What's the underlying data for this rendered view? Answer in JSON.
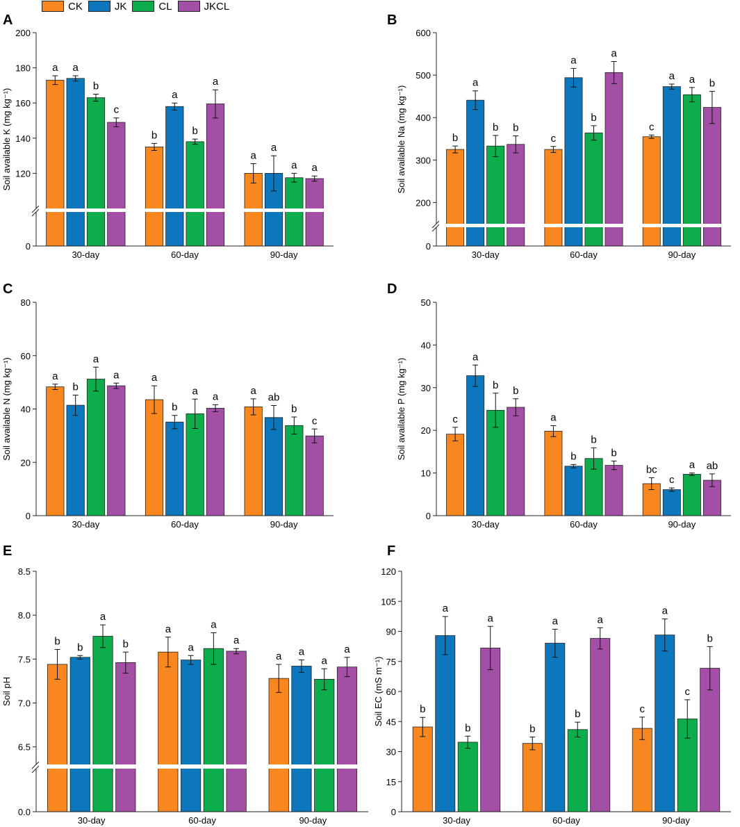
{
  "legend": [
    {
      "name": "CK",
      "color": "#F7871E"
    },
    {
      "name": "JK",
      "color": "#0C77BC"
    },
    {
      "name": "CL",
      "color": "#0DAD4B"
    },
    {
      "name": "JKCL",
      "color": "#A34FA5"
    }
  ],
  "chart_data": [
    {
      "type": "bar",
      "label": "A",
      "ylabel": "Soil available K (mg kg⁻¹)",
      "categories": [
        "30-day",
        "60-day",
        "90-day"
      ],
      "axis_break": true,
      "ylim": [
        100,
        200
      ],
      "yticks": [
        120,
        140,
        160,
        180,
        200
      ],
      "ybottom_tick": 0,
      "series": [
        {
          "name": "CK",
          "values": [
            173,
            135,
            120
          ],
          "errors": [
            2.5,
            2,
            5.5
          ],
          "letters": [
            "a",
            "b",
            "a"
          ]
        },
        {
          "name": "JK",
          "values": [
            174,
            158,
            120
          ],
          "errors": [
            1.5,
            2,
            10
          ],
          "letters": [
            "a",
            "a",
            "a"
          ]
        },
        {
          "name": "CL",
          "values": [
            163,
            138,
            117.5
          ],
          "errors": [
            2,
            1.5,
            2.5
          ],
          "letters": [
            "b",
            "b",
            "a"
          ]
        },
        {
          "name": "JKCL",
          "values": [
            149,
            159.5,
            117
          ],
          "errors": [
            2.5,
            8,
            1.5
          ],
          "letters": [
            "c",
            "a",
            "a"
          ]
        }
      ]
    },
    {
      "type": "bar",
      "label": "B",
      "ylabel": "Soil available Na (mg kg⁻¹)",
      "categories": [
        "30-day",
        "60-day",
        "90-day"
      ],
      "axis_break": true,
      "ylim": [
        150,
        600
      ],
      "yticks": [
        200,
        300,
        400,
        500,
        600
      ],
      "ybottom_tick": 0,
      "series": [
        {
          "name": "CK",
          "values": [
            325,
            325,
            355
          ],
          "errors": [
            8,
            7,
            4
          ],
          "letters": [
            "b",
            "c",
            "c"
          ]
        },
        {
          "name": "JK",
          "values": [
            441,
            494,
            473
          ],
          "errors": [
            22,
            22,
            6
          ],
          "letters": [
            "a",
            "a",
            "a"
          ]
        },
        {
          "name": "CL",
          "values": [
            333,
            364,
            454
          ],
          "errors": [
            25,
            17,
            17
          ],
          "letters": [
            "b",
            "b",
            "a"
          ]
        },
        {
          "name": "JKCL",
          "values": [
            337,
            506,
            424
          ],
          "errors": [
            20,
            26,
            38
          ],
          "letters": [
            "b",
            "a",
            "b"
          ]
        }
      ]
    },
    {
      "type": "bar",
      "label": "C",
      "ylabel": "Soil available N (mg kg⁻¹)",
      "categories": [
        "30-day",
        "60-day",
        "90-day"
      ],
      "axis_break": false,
      "ylim": [
        0,
        80
      ],
      "yticks": [
        0,
        20,
        40,
        60,
        80
      ],
      "series": [
        {
          "name": "CK",
          "values": [
            48.3,
            43.5,
            40.8
          ],
          "errors": [
            1,
            5.2,
            3
          ],
          "letters": [
            "a",
            "a",
            "a"
          ]
        },
        {
          "name": "JK",
          "values": [
            41.4,
            35.1,
            36.8
          ],
          "errors": [
            3.8,
            2.5,
            4.5
          ],
          "letters": [
            "b",
            "b",
            "ab"
          ]
        },
        {
          "name": "CL",
          "values": [
            51.2,
            38.2,
            33.8
          ],
          "errors": [
            4.5,
            5.5,
            3.2
          ],
          "letters": [
            "a",
            "a",
            "b"
          ]
        },
        {
          "name": "JKCL",
          "values": [
            48.7,
            40.3,
            29.9
          ],
          "errors": [
            1,
            1.3,
            2.6
          ],
          "letters": [
            "a",
            "a",
            "c"
          ]
        }
      ]
    },
    {
      "type": "bar",
      "label": "D",
      "ylabel": "Soil available P (mg kg⁻¹)",
      "categories": [
        "30-day",
        "60-day",
        "90-day"
      ],
      "axis_break": false,
      "ylim": [
        0,
        50
      ],
      "yticks": [
        0,
        10,
        20,
        30,
        40,
        50
      ],
      "series": [
        {
          "name": "CK",
          "values": [
            19.1,
            19.8,
            7.5
          ],
          "errors": [
            1.6,
            1.3,
            1.4
          ],
          "letters": [
            "c",
            "a",
            "bc"
          ]
        },
        {
          "name": "JK",
          "values": [
            32.8,
            11.6,
            6.1
          ],
          "errors": [
            2.5,
            0.4,
            0.4
          ],
          "letters": [
            "a",
            "b",
            "c"
          ]
        },
        {
          "name": "CL",
          "values": [
            24.7,
            13.4,
            9.7
          ],
          "errors": [
            4,
            2.5,
            0.3
          ],
          "letters": [
            "b",
            "b",
            "a"
          ]
        },
        {
          "name": "JKCL",
          "values": [
            25.4,
            11.8,
            8.3
          ],
          "errors": [
            2,
            1,
            1.5
          ],
          "letters": [
            "b",
            "b",
            "ab"
          ]
        }
      ]
    },
    {
      "type": "bar",
      "label": "E",
      "ylabel": "Soil pH",
      "categories": [
        "30-day",
        "60-day",
        "90-day"
      ],
      "axis_break": true,
      "ylim": [
        6.3,
        8.5
      ],
      "yticks": [
        6.5,
        7.0,
        7.5,
        8.0,
        8.5
      ],
      "ybottom_tick": 0.0,
      "decimals": 1,
      "series": [
        {
          "name": "CK",
          "values": [
            7.44,
            7.58,
            7.28
          ],
          "errors": [
            0.17,
            0.17,
            0.16
          ],
          "letters": [
            "b",
            "a",
            "a"
          ]
        },
        {
          "name": "JK",
          "values": [
            7.52,
            7.49,
            7.42
          ],
          "errors": [
            0.02,
            0.05,
            0.07
          ],
          "letters": [
            "b",
            "a",
            "a"
          ]
        },
        {
          "name": "CL",
          "values": [
            7.76,
            7.62,
            7.27
          ],
          "errors": [
            0.13,
            0.18,
            0.12
          ],
          "letters": [
            "a",
            "a",
            "a"
          ]
        },
        {
          "name": "JKCL",
          "values": [
            7.46,
            7.59,
            7.41
          ],
          "errors": [
            0.12,
            0.03,
            0.11
          ],
          "letters": [
            "b",
            "a",
            "a"
          ]
        }
      ]
    },
    {
      "type": "bar",
      "label": "F",
      "ylabel": "Soil EC (mS m⁻¹)",
      "categories": [
        "30-day",
        "60-day",
        "90-day"
      ],
      "axis_break": false,
      "ylim": [
        0,
        120
      ],
      "yticks": [
        0,
        15,
        30,
        45,
        60,
        75,
        90,
        105,
        120
      ],
      "series": [
        {
          "name": "CK",
          "values": [
            42.3,
            34.1,
            41.6
          ],
          "errors": [
            4.8,
            3.2,
            5.6
          ],
          "letters": [
            "b",
            "b",
            "c"
          ]
        },
        {
          "name": "JK",
          "values": [
            87.9,
            84.1,
            88.2
          ],
          "errors": [
            9.5,
            7,
            8
          ],
          "letters": [
            "a",
            "a",
            "a"
          ]
        },
        {
          "name": "CL",
          "values": [
            34.7,
            41.0,
            46.3
          ],
          "errors": [
            3,
            3.7,
            9.6
          ],
          "letters": [
            "b",
            "b",
            "c"
          ]
        },
        {
          "name": "JKCL",
          "values": [
            81.7,
            86.5,
            71.6
          ],
          "errors": [
            10.8,
            5.3,
            10.8
          ],
          "letters": [
            "a",
            "a",
            "b"
          ]
        }
      ]
    }
  ]
}
